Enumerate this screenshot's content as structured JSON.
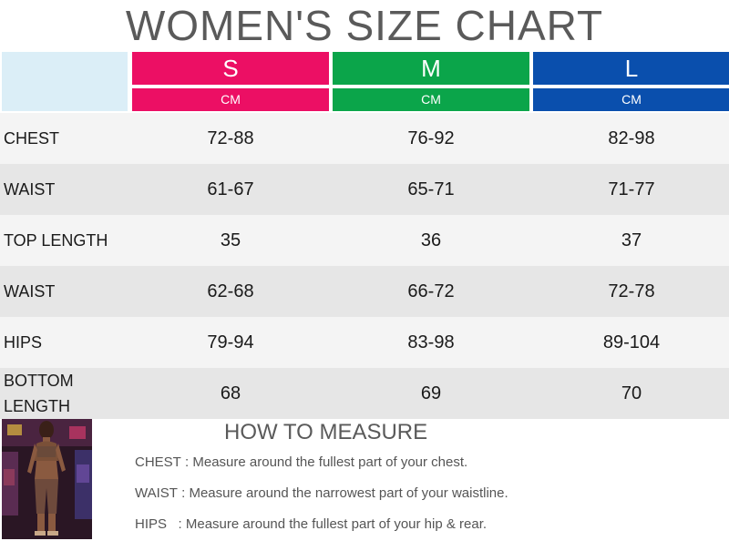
{
  "title": "WOMEN'S SIZE CHART",
  "sizes": [
    {
      "label": "S",
      "unit": "CM",
      "color": "#ec0f64"
    },
    {
      "label": "M",
      "unit": "CM",
      "color": "#0ba54a"
    },
    {
      "label": "L",
      "unit": "CM",
      "color": "#0a4fad"
    }
  ],
  "rows": [
    {
      "label": "CHEST",
      "values": [
        "72-88",
        "76-92",
        "82-98"
      ]
    },
    {
      "label": "WAIST",
      "values": [
        "61-67",
        "65-71",
        "71-77"
      ]
    },
    {
      "label": "TOP LENGTH",
      "values": [
        "35",
        "36",
        "37"
      ]
    },
    {
      "label": "WAIST",
      "values": [
        "62-68",
        "66-72",
        "72-78"
      ]
    },
    {
      "label": "HIPS",
      "values": [
        "79-94",
        "83-98",
        "89-104"
      ]
    },
    {
      "label": "BOTTOM LENGTH",
      "values": [
        "68",
        "69",
        "70"
      ]
    }
  ],
  "how_to_measure": {
    "title": "HOW TO MEASURE",
    "items": [
      {
        "key": "CHEST :",
        "text": "Measure around the fullest part of your chest."
      },
      {
        "key": "WAIST :",
        "text": "Measure around the narrowest part of your waistline."
      },
      {
        "key": "HIPS   :",
        "text": "Measure around the fullest part of your hip & rear."
      }
    ]
  }
}
